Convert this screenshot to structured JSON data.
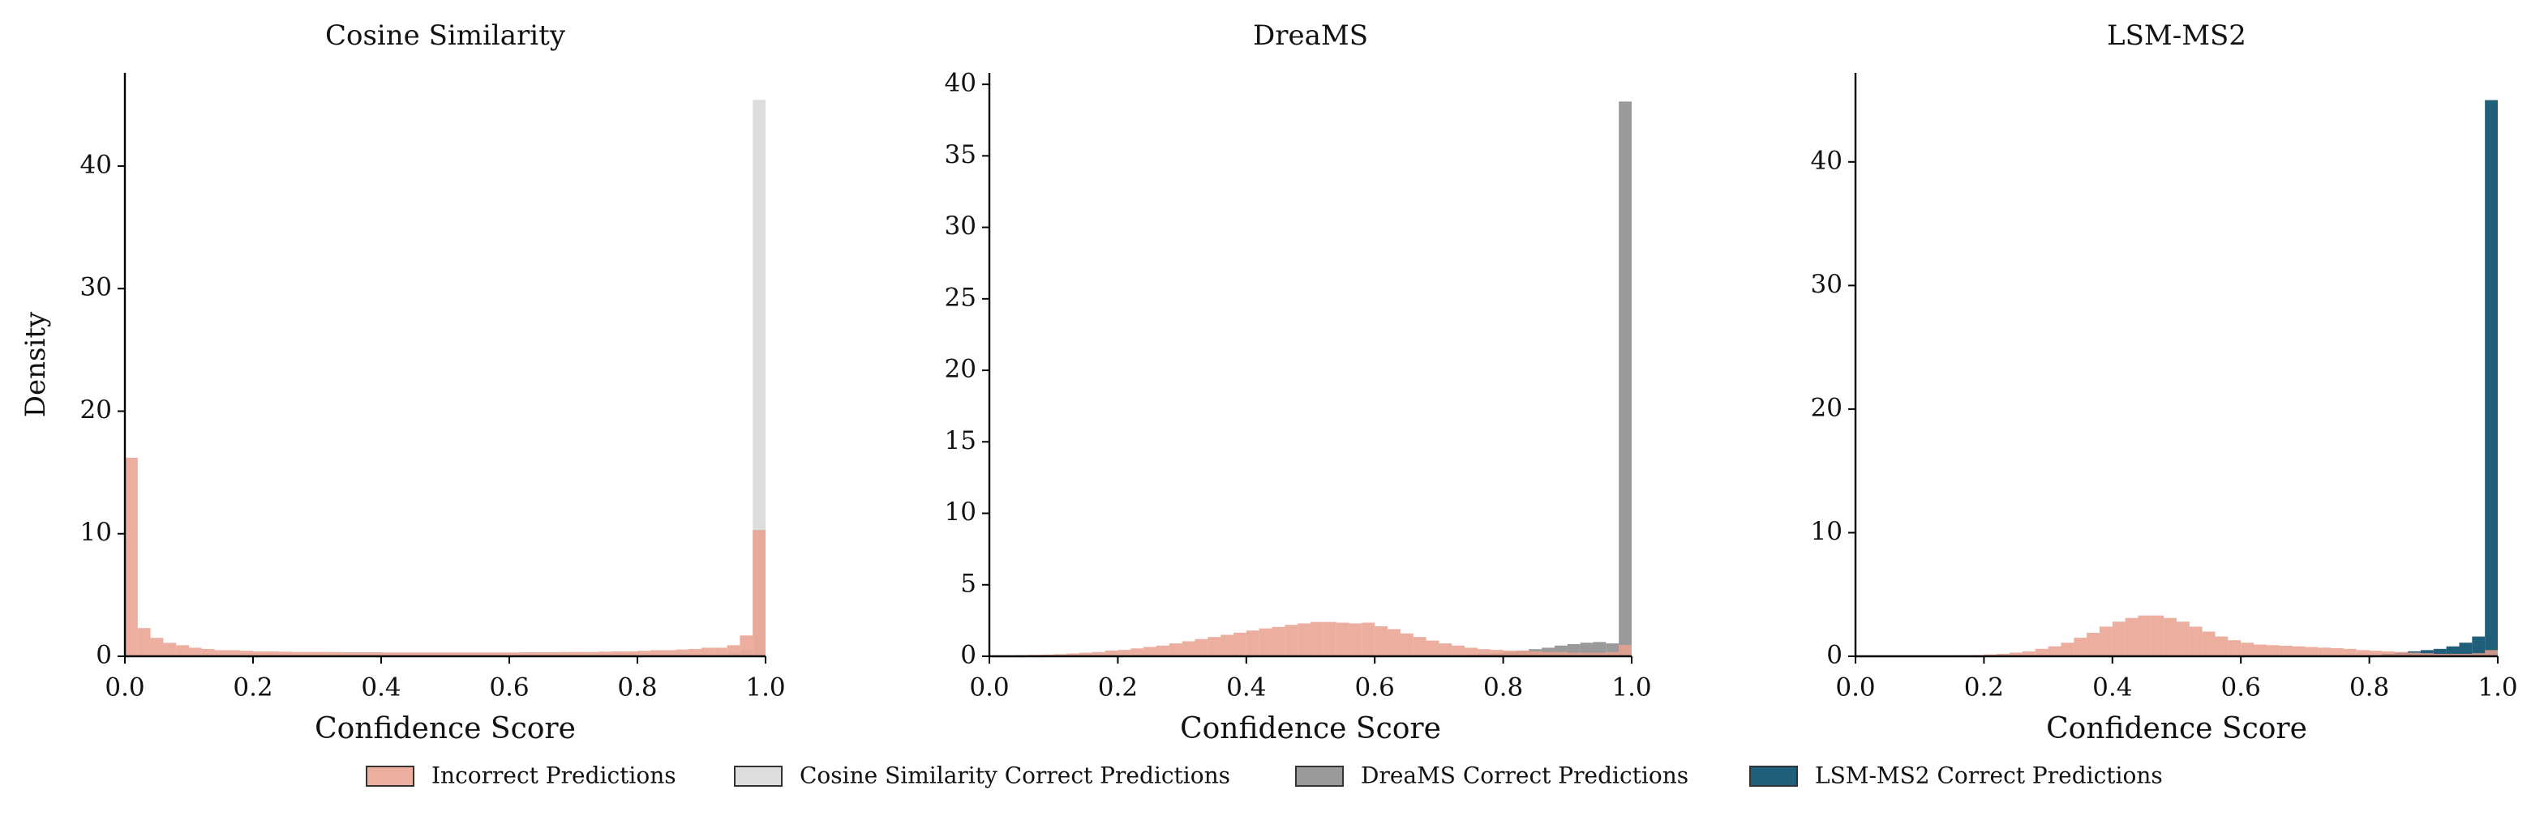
{
  "chart_data": [
    {
      "type": "histogram",
      "title": "Cosine Similarity",
      "xlabel": "Confidence Score",
      "ylabel": "Density",
      "bins": [
        0,
        0.02,
        0.04,
        0.06,
        0.08,
        0.1,
        0.12,
        0.14,
        0.16,
        0.18,
        0.2,
        0.22,
        0.24,
        0.26,
        0.28,
        0.3,
        0.32,
        0.34,
        0.36,
        0.38,
        0.4,
        0.42,
        0.44,
        0.46,
        0.48,
        0.5,
        0.52,
        0.54,
        0.56,
        0.58,
        0.6,
        0.62,
        0.64,
        0.66,
        0.68,
        0.7,
        0.72,
        0.74,
        0.76,
        0.78,
        0.8,
        0.82,
        0.84,
        0.86,
        0.88,
        0.9,
        0.92,
        0.94,
        0.96,
        0.98,
        1
      ],
      "series": [
        {
          "name": "Incorrect Predictions",
          "color": "#e8a08e",
          "values": [
            16.2,
            2.3,
            1.5,
            1.1,
            0.9,
            0.7,
            0.6,
            0.5,
            0.5,
            0.45,
            0.4,
            0.4,
            0.38,
            0.35,
            0.35,
            0.35,
            0.35,
            0.33,
            0.33,
            0.33,
            0.32,
            0.32,
            0.32,
            0.32,
            0.32,
            0.32,
            0.32,
            0.32,
            0.32,
            0.32,
            0.32,
            0.33,
            0.33,
            0.33,
            0.35,
            0.35,
            0.35,
            0.38,
            0.4,
            0.4,
            0.45,
            0.5,
            0.5,
            0.55,
            0.6,
            0.7,
            0.7,
            0.9,
            1.7,
            10.3
          ]
        },
        {
          "name": "Cosine Similarity Correct Predictions",
          "color": "#dddddd",
          "values": [
            0,
            0,
            0,
            0,
            0,
            0,
            0,
            0,
            0,
            0,
            0,
            0,
            0,
            0,
            0,
            0,
            0,
            0,
            0,
            0,
            0,
            0,
            0,
            0,
            0,
            0,
            0,
            0,
            0,
            0,
            0,
            0,
            0,
            0,
            0,
            0,
            0,
            0,
            0,
            0,
            0,
            0,
            0,
            0,
            0,
            0,
            0.1,
            0.2,
            0.5,
            45.4
          ]
        }
      ],
      "xlim": [
        0,
        1
      ],
      "ylim": [
        0,
        47.6
      ],
      "xticks": [
        {
          "value": 0,
          "label": "0.0"
        },
        {
          "value": 0.2,
          "label": "0.2"
        },
        {
          "value": 0.4,
          "label": "0.4"
        },
        {
          "value": 0.6,
          "label": "0.6"
        },
        {
          "value": 0.8,
          "label": "0.8"
        },
        {
          "value": 1,
          "label": "1.0"
        }
      ],
      "yticks": [
        0,
        10,
        20,
        30,
        40
      ]
    },
    {
      "type": "histogram",
      "title": "DreaMS",
      "xlabel": "Confidence Score",
      "bins": [
        0,
        0.02,
        0.04,
        0.06,
        0.08,
        0.1,
        0.12,
        0.14,
        0.16,
        0.18,
        0.2,
        0.22,
        0.24,
        0.26,
        0.28,
        0.3,
        0.32,
        0.34,
        0.36,
        0.38,
        0.4,
        0.42,
        0.44,
        0.46,
        0.48,
        0.5,
        0.52,
        0.54,
        0.56,
        0.58,
        0.6,
        0.62,
        0.64,
        0.66,
        0.68,
        0.7,
        0.72,
        0.74,
        0.76,
        0.78,
        0.8,
        0.82,
        0.84,
        0.86,
        0.88,
        0.9,
        0.92,
        0.94,
        0.96,
        0.98,
        1
      ],
      "series": [
        {
          "name": "Incorrect Predictions",
          "color": "#e8a08e",
          "values": [
            0.05,
            0.05,
            0.08,
            0.1,
            0.12,
            0.15,
            0.2,
            0.25,
            0.3,
            0.4,
            0.45,
            0.55,
            0.65,
            0.75,
            0.9,
            1.05,
            1.2,
            1.35,
            1.5,
            1.65,
            1.8,
            1.95,
            2.05,
            2.2,
            2.3,
            2.4,
            2.4,
            2.35,
            2.3,
            2.35,
            2.1,
            1.9,
            1.6,
            1.35,
            1.1,
            0.9,
            0.75,
            0.6,
            0.5,
            0.45,
            0.4,
            0.4,
            0.35,
            0.3,
            0.3,
            0.25,
            0.25,
            0.25,
            0.3,
            0.8
          ]
        },
        {
          "name": "DreaMS Correct Predictions",
          "color": "#9a9a9a",
          "values": [
            0,
            0,
            0,
            0,
            0,
            0,
            0,
            0,
            0,
            0,
            0,
            0,
            0,
            0,
            0,
            0,
            0,
            0,
            0,
            0,
            0,
            0,
            0,
            0,
            0,
            0,
            0,
            0,
            0,
            0,
            0,
            0,
            0,
            0,
            0,
            0,
            0.05,
            0.1,
            0.15,
            0.2,
            0.3,
            0.4,
            0.5,
            0.6,
            0.75,
            0.85,
            0.95,
            1.0,
            0.9,
            38.8
          ]
        }
      ],
      "xlim": [
        0,
        1
      ],
      "ylim": [
        0,
        40.8
      ],
      "xticks": [
        {
          "value": 0,
          "label": "0.0"
        },
        {
          "value": 0.2,
          "label": "0.2"
        },
        {
          "value": 0.4,
          "label": "0.4"
        },
        {
          "value": 0.6,
          "label": "0.6"
        },
        {
          "value": 0.8,
          "label": "0.8"
        },
        {
          "value": 1,
          "label": "1.0"
        }
      ],
      "yticks": [
        0,
        5,
        10,
        15,
        20,
        25,
        30,
        35,
        40
      ]
    },
    {
      "type": "histogram",
      "title": "LSM-MS2",
      "xlabel": "Confidence Score",
      "bins": [
        0,
        0.02,
        0.04,
        0.06,
        0.08,
        0.1,
        0.12,
        0.14,
        0.16,
        0.18,
        0.2,
        0.22,
        0.24,
        0.26,
        0.28,
        0.3,
        0.32,
        0.34,
        0.36,
        0.38,
        0.4,
        0.42,
        0.44,
        0.46,
        0.48,
        0.5,
        0.52,
        0.54,
        0.56,
        0.58,
        0.6,
        0.62,
        0.64,
        0.66,
        0.68,
        0.7,
        0.72,
        0.74,
        0.76,
        0.78,
        0.8,
        0.82,
        0.84,
        0.86,
        0.88,
        0.9,
        0.92,
        0.94,
        0.96,
        0.98,
        1
      ],
      "series": [
        {
          "name": "Incorrect Predictions",
          "color": "#e8a08e",
          "values": [
            0.02,
            0.02,
            0.03,
            0.03,
            0.04,
            0.05,
            0.06,
            0.07,
            0.08,
            0.1,
            0.15,
            0.2,
            0.3,
            0.4,
            0.6,
            0.8,
            1.1,
            1.5,
            1.9,
            2.4,
            2.8,
            3.1,
            3.3,
            3.3,
            3.1,
            2.8,
            2.4,
            2.0,
            1.6,
            1.3,
            1.1,
            0.95,
            0.9,
            0.85,
            0.8,
            0.75,
            0.7,
            0.65,
            0.6,
            0.5,
            0.45,
            0.4,
            0.35,
            0.3,
            0.25,
            0.2,
            0.2,
            0.2,
            0.25,
            0.5
          ]
        },
        {
          "name": "LSM-MS2 Correct Predictions",
          "color": "#1f5f7a",
          "values": [
            0,
            0,
            0,
            0,
            0,
            0,
            0,
            0,
            0,
            0,
            0,
            0,
            0,
            0,
            0,
            0,
            0,
            0,
            0,
            0,
            0,
            0,
            0,
            0,
            0,
            0,
            0,
            0,
            0,
            0,
            0,
            0,
            0,
            0,
            0,
            0,
            0,
            0,
            0,
            0,
            0.1,
            0.2,
            0.3,
            0.4,
            0.5,
            0.6,
            0.8,
            1.1,
            1.6,
            45.0
          ]
        }
      ],
      "xlim": [
        0,
        1
      ],
      "ylim": [
        0,
        47.2
      ],
      "xticks": [
        {
          "value": 0,
          "label": "0.0"
        },
        {
          "value": 0.2,
          "label": "0.2"
        },
        {
          "value": 0.4,
          "label": "0.4"
        },
        {
          "value": 0.6,
          "label": "0.6"
        },
        {
          "value": 0.8,
          "label": "0.8"
        },
        {
          "value": 1,
          "label": "1.0"
        }
      ],
      "yticks": [
        0,
        10,
        20,
        30,
        40
      ]
    }
  ]
}
